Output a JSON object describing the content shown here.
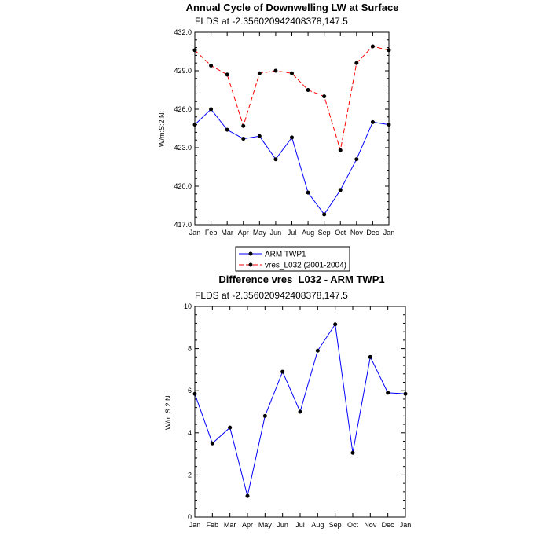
{
  "colors": {
    "arm": "#0000ff",
    "model": "#ff0000",
    "marker": "#000000",
    "axis": "#000000"
  },
  "legend": {
    "entries": [
      {
        "label": "ARM TWP1",
        "color": "#0000ff",
        "dash": false
      },
      {
        "label": "vres_L032 (2001-2004)",
        "color": "#ff0000",
        "dash": true
      }
    ]
  },
  "chart_data": [
    {
      "type": "line",
      "title": "Annual Cycle of Downwelling LW at Surface",
      "subtitle": "FLDS at -2.356020942408378,147.5",
      "xlabel": "",
      "ylabel": "W/m:S:2:N:",
      "categories": [
        "Jan",
        "Feb",
        "Mar",
        "Apr",
        "May",
        "Jun",
        "Jul",
        "Aug",
        "Sep",
        "Oct",
        "Nov",
        "Dec",
        "Jan"
      ],
      "ylim": [
        417.0,
        432.0
      ],
      "yticks": [
        417.0,
        420.0,
        423.0,
        426.0,
        429.0,
        432.0
      ],
      "ytick_labels": [
        "417.0",
        "420.0",
        "423.0",
        "426.0",
        "429.0",
        "432.0"
      ],
      "grid": false,
      "legend_position": "bottom",
      "series": [
        {
          "name": "ARM TWP1",
          "color": "#0000ff",
          "dash": false,
          "values": [
            424.8,
            426.0,
            424.4,
            423.7,
            423.9,
            422.1,
            423.8,
            419.5,
            417.8,
            419.7,
            422.1,
            425.0,
            424.8
          ]
        },
        {
          "name": "vres_L032 (2001-2004)",
          "color": "#ff0000",
          "dash": true,
          "values": [
            430.6,
            429.4,
            428.7,
            424.7,
            428.8,
            429.0,
            428.8,
            427.5,
            427.0,
            422.8,
            429.6,
            430.9,
            430.6
          ]
        }
      ]
    },
    {
      "type": "line",
      "title": "Difference vres_L032 - ARM TWP1",
      "subtitle": "FLDS at -2.356020942408378,147.5",
      "xlabel": "",
      "ylabel": "W/m:S:2:N:",
      "categories": [
        "Jan",
        "Feb",
        "Mar",
        "Apr",
        "May",
        "Jun",
        "Jul",
        "Aug",
        "Sep",
        "Oct",
        "Nov",
        "Dec",
        "Jan"
      ],
      "ylim": [
        0,
        10
      ],
      "yticks": [
        0,
        2,
        4,
        6,
        8,
        10
      ],
      "ytick_labels": [
        "0",
        "2",
        "4",
        "6",
        "8",
        "10"
      ],
      "grid": false,
      "series": [
        {
          "color": "#0000ff",
          "dash": false,
          "values": [
            5.85,
            3.5,
            4.25,
            1.0,
            4.8,
            6.9,
            5.0,
            7.9,
            9.15,
            3.05,
            7.6,
            5.9,
            5.85
          ]
        }
      ]
    }
  ]
}
